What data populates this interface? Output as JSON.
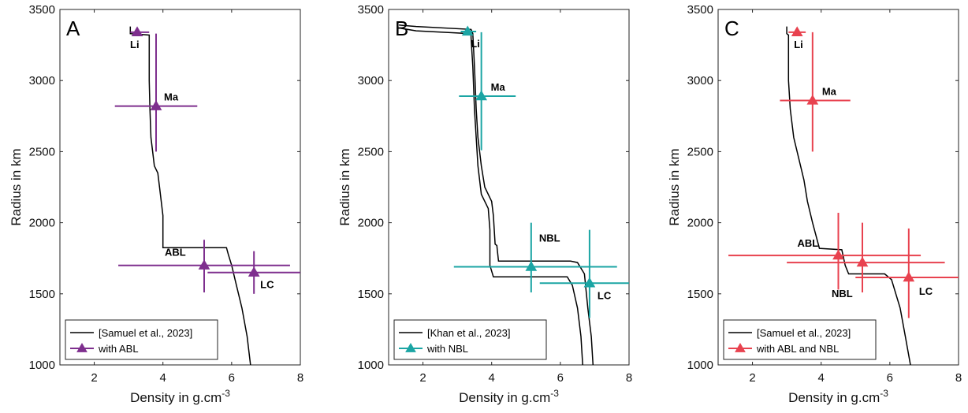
{
  "chart_data": [
    {
      "type": "line",
      "panel_letter": "A",
      "xlabel": "Density in g.cm",
      "xlabel_sup": "-3",
      "ylabel": "Radius in km",
      "xlim": [
        1,
        8
      ],
      "ylim": [
        1000,
        3500
      ],
      "xticks": [
        2,
        4,
        6,
        8
      ],
      "yticks": [
        1000,
        1500,
        2000,
        2500,
        3000,
        3500
      ],
      "grid": false,
      "legend_position": "bottom-left",
      "profiles": [
        {
          "name": "[Samuel et al., 2023]",
          "color": "#000000",
          "points": [
            [
              3.05,
              3380
            ],
            [
              3.05,
              3330
            ],
            [
              3.6,
              3320
            ],
            [
              3.6,
              3000
            ],
            [
              3.62,
              2800
            ],
            [
              3.65,
              2600
            ],
            [
              3.75,
              2400
            ],
            [
              3.85,
              2350
            ],
            [
              3.9,
              2250
            ],
            [
              4.0,
              2050
            ],
            [
              4.0,
              1825
            ],
            [
              5.85,
              1825
            ],
            [
              5.9,
              1780
            ],
            [
              6.0,
              1700
            ],
            [
              6.1,
              1600
            ],
            [
              6.3,
              1400
            ],
            [
              6.45,
              1200
            ],
            [
              6.55,
              1000
            ]
          ]
        }
      ],
      "series": [
        {
          "name": "with ABL",
          "color": "#7e2f8e",
          "points": [
            {
              "label": "Li",
              "x": 3.25,
              "y": 3340,
              "xerr": [
                3.05,
                3.6
              ],
              "yerr": null
            },
            {
              "label": "Ma",
              "x": 3.8,
              "y": 2820,
              "xerr": [
                2.6,
                5.0
              ],
              "yerr": [
                2500,
                3330
              ]
            },
            {
              "label": "ABL",
              "x": 5.2,
              "y": 1700,
              "xerr": [
                2.7,
                7.7
              ],
              "yerr": [
                1510,
                1880
              ]
            },
            {
              "label": "LC",
              "x": 6.65,
              "y": 1650,
              "xerr": [
                5.3,
                8.0
              ],
              "yerr": [
                1500,
                1800
              ]
            }
          ]
        }
      ]
    },
    {
      "type": "line",
      "panel_letter": "B",
      "xlabel": "Density in g.cm",
      "xlabel_sup": "-3",
      "ylabel": "Radius in km",
      "xlim": [
        1,
        8
      ],
      "ylim": [
        1000,
        3500
      ],
      "xticks": [
        2,
        4,
        6,
        8
      ],
      "yticks": [
        1000,
        1500,
        2000,
        2500,
        3000,
        3500
      ],
      "grid": false,
      "legend_position": "bottom-left",
      "profiles": [
        {
          "name": "[Khan et al., 2023]",
          "color": "#000000",
          "points": [
            [
              1.3,
              3390
            ],
            [
              1.8,
              3380
            ],
            [
              3.4,
              3360
            ],
            [
              3.45,
              3330
            ],
            [
              3.5,
              3100
            ],
            [
              3.55,
              2800
            ],
            [
              3.6,
              2600
            ],
            [
              3.7,
              2400
            ],
            [
              3.8,
              2250
            ],
            [
              4.0,
              2150
            ],
            [
              4.05,
              2050
            ],
            [
              4.1,
              1850
            ],
            [
              4.15,
              1840
            ],
            [
              4.2,
              1730
            ],
            [
              6.3,
              1730
            ],
            [
              6.5,
              1720
            ],
            [
              6.7,
              1640
            ],
            [
              6.8,
              1400
            ],
            [
              6.9,
              1200
            ],
            [
              6.95,
              1000
            ]
          ]
        },
        {
          "name": "",
          "color": "#000000",
          "points": [
            [
              1.3,
              3370
            ],
            [
              1.8,
              3350
            ],
            [
              3.4,
              3330
            ],
            [
              3.4,
              3300
            ],
            [
              3.45,
              3100
            ],
            [
              3.5,
              2800
            ],
            [
              3.55,
              2600
            ],
            [
              3.6,
              2400
            ],
            [
              3.7,
              2200
            ],
            [
              3.9,
              2100
            ],
            [
              3.95,
              1950
            ],
            [
              3.95,
              1700
            ],
            [
              4.05,
              1620
            ],
            [
              6.2,
              1620
            ],
            [
              6.35,
              1560
            ],
            [
              6.5,
              1400
            ],
            [
              6.6,
              1200
            ],
            [
              6.65,
              1000
            ]
          ]
        }
      ],
      "series": [
        {
          "name": "with NBL",
          "color": "#1ba5a4",
          "points": [
            {
              "label": "Li",
              "x": 3.3,
              "y": 3345,
              "xerr": [
                3.1,
                3.55
              ],
              "yerr": null
            },
            {
              "label": "Ma",
              "x": 3.7,
              "y": 2890,
              "xerr": [
                3.05,
                4.7
              ],
              "yerr": [
                2510,
                3340
              ]
            },
            {
              "label": "NBL",
              "x": 5.15,
              "y": 1690,
              "xerr": [
                2.9,
                7.65
              ],
              "yerr": [
                1510,
                2000
              ]
            },
            {
              "label": "LC",
              "x": 6.85,
              "y": 1575,
              "xerr": [
                5.4,
                8.0
              ],
              "yerr": [
                1330,
                1950
              ]
            }
          ]
        }
      ]
    },
    {
      "type": "line",
      "panel_letter": "C",
      "xlabel": "Density in g.cm",
      "xlabel_sup": "-3",
      "ylabel": "Radius in km",
      "xlim": [
        1,
        8
      ],
      "ylim": [
        1000,
        3500
      ],
      "xticks": [
        2,
        4,
        6,
        8
      ],
      "yticks": [
        1000,
        1500,
        2000,
        2500,
        3000,
        3500
      ],
      "grid": false,
      "legend_position": "bottom-left",
      "profiles": [
        {
          "name": "[Samuel et al., 2023]",
          "color": "#000000",
          "points": [
            [
              3.0,
              3380
            ],
            [
              3.0,
              3330
            ],
            [
              3.05,
              3320
            ],
            [
              3.05,
              3000
            ],
            [
              3.1,
              2800
            ],
            [
              3.2,
              2600
            ],
            [
              3.35,
              2450
            ],
            [
              3.5,
              2300
            ],
            [
              3.6,
              2150
            ],
            [
              3.75,
              2000
            ],
            [
              3.95,
              1820
            ],
            [
              4.6,
              1810
            ],
            [
              4.7,
              1700
            ],
            [
              4.8,
              1640
            ],
            [
              5.85,
              1640
            ],
            [
              6.05,
              1600
            ],
            [
              6.3,
              1400
            ],
            [
              6.45,
              1200
            ],
            [
              6.6,
              1000
            ]
          ]
        }
      ],
      "series": [
        {
          "name": "with ABL and NBL",
          "color": "#e8424f",
          "points": [
            {
              "label": "Li",
              "x": 3.3,
              "y": 3340,
              "xerr": [
                3.05,
                3.55
              ],
              "yerr": null
            },
            {
              "label": "Ma",
              "x": 3.75,
              "y": 2860,
              "xerr": [
                2.8,
                4.85
              ],
              "yerr": [
                2500,
                3340
              ]
            },
            {
              "label": "ABL",
              "x": 4.5,
              "y": 1770,
              "xerr": [
                1.3,
                6.9
              ],
              "yerr": [
                1530,
                2070
              ]
            },
            {
              "label": "NBL",
              "x": 5.2,
              "y": 1720,
              "xerr": [
                3.0,
                7.6
              ],
              "yerr": [
                1510,
                2000
              ]
            },
            {
              "label": "LC",
              "x": 6.55,
              "y": 1615,
              "xerr": [
                5.0,
                8.0
              ],
              "yerr": [
                1330,
                1960
              ]
            }
          ]
        }
      ]
    }
  ]
}
